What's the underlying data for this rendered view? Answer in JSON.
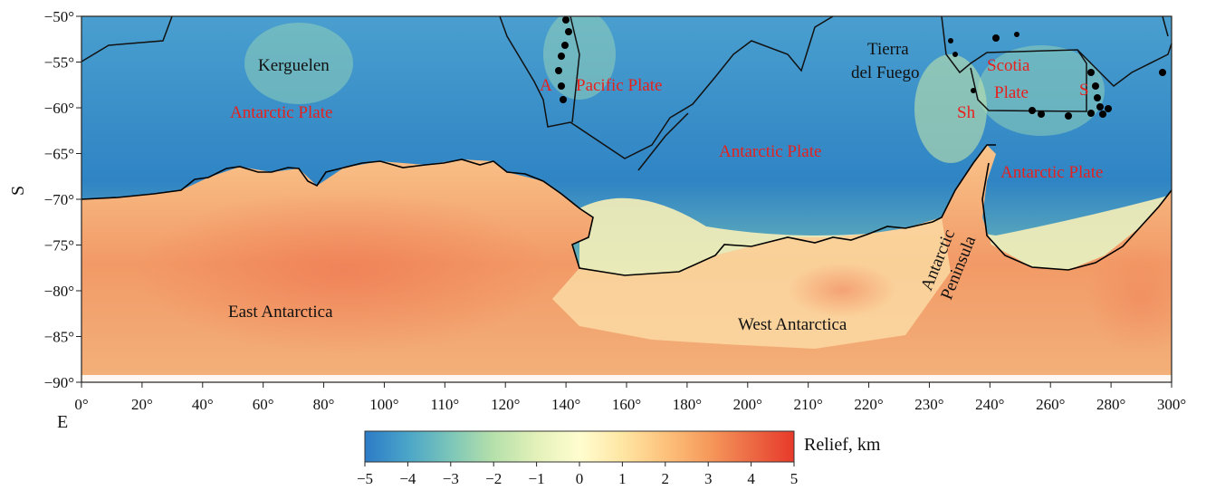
{
  "map": {
    "y_axis_title": "S",
    "x_axis_title": "E",
    "y_ticks": [
      "−50°",
      "−55°",
      "−60°",
      "−65°",
      "−70°",
      "−75°",
      "−80°",
      "−85°",
      "−90°"
    ],
    "x_ticks": [
      "0°",
      "20°",
      "40°",
      "60°",
      "80°",
      "100°",
      "110°",
      "120°",
      "140°",
      "160°",
      "180°",
      "200°",
      "210°",
      "220°",
      "230°",
      "240°",
      "260°",
      "280°",
      "300°"
    ],
    "labels": {
      "kerguelen": "Kerguelen",
      "antarctic_plate_1": "Antarctic Plate",
      "a": "A",
      "pacific_plate": "Pacific Plate",
      "antarctic_plate_2": "Antarctic Plate",
      "tierra": "Tierra",
      "del_fuego": "del Fuego",
      "scotia": "Scotia",
      "plate": "Plate",
      "s": "S",
      "sh": "Sh",
      "antarctic_plate_3": "Antarctic Plate",
      "antarctic": "Antarctic",
      "peninsula": "Peninsula",
      "east_antarctica": "East Antarctica",
      "west_antarctica": "West Antarctica"
    }
  },
  "colorbar": {
    "title": "Relief, km",
    "ticks": [
      "−5",
      "−4",
      "−3",
      "−2",
      "−1",
      "0",
      "1",
      "2",
      "3",
      "4",
      "5"
    ],
    "colors": [
      "#2c7bc7",
      "#4aa5c8",
      "#7cc6b9",
      "#b6e0aa",
      "#e3f1b9",
      "#fffdd0",
      "#fee6a3",
      "#fdc27c",
      "#f69a5c",
      "#ec6a44",
      "#e8392a"
    ]
  }
}
